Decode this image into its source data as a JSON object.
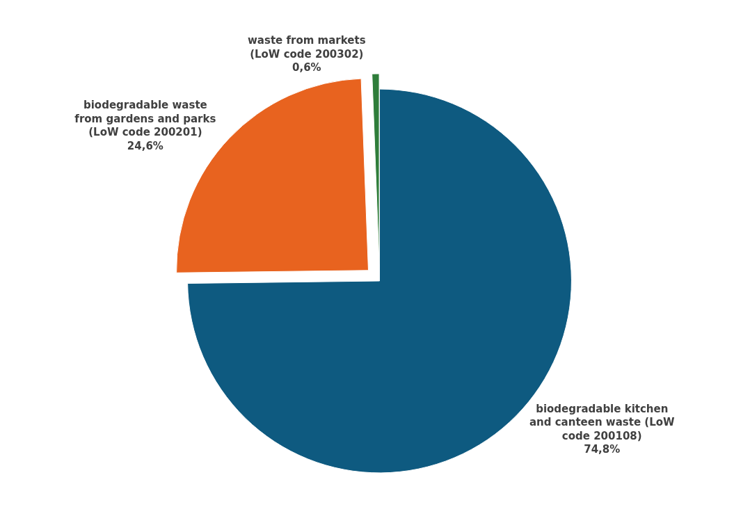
{
  "chart_data": {
    "type": "pie",
    "categories": [
      "biodegradable kitchen and canteen waste (LoW code 200108)",
      "biodegradable waste from gardens and parks (LoW code 200201)",
      "waste from markets (LoW code 200302)"
    ],
    "values": [
      74.8,
      24.6,
      0.6
    ],
    "value_labels": [
      "74,8%",
      "24,6%",
      "0,6%"
    ],
    "colors": [
      "#0e5a80",
      "#e8631f",
      "#2e7d3a"
    ],
    "legend": false
  }
}
